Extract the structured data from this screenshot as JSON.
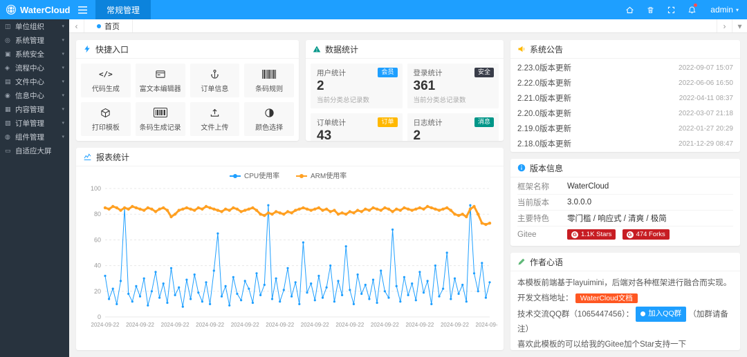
{
  "topbar": {
    "brand": "WaterCloud",
    "active_tab": "常规管理",
    "user": "admin",
    "caret": "▾"
  },
  "tabsbar": {
    "prev": "‹",
    "next": "›",
    "more": "▾",
    "home_tab": "首页"
  },
  "icons": {
    "brand-globe-icon": "globe",
    "menu-icon": "hamburger",
    "home-icon": "house",
    "clear-cache-icon": "trash",
    "fullscreen-icon": "expand",
    "notification-icon": "bell"
  },
  "sidebar": {
    "items": [
      {
        "label": "单位组织",
        "icon": "org-icon",
        "glyph": "◫",
        "caret": "▾"
      },
      {
        "label": "系统管理",
        "icon": "system-settings-icon",
        "glyph": "◎",
        "caret": "▾"
      },
      {
        "label": "系统安全",
        "icon": "security-icon",
        "glyph": "▣",
        "caret": "▾"
      },
      {
        "label": "流程中心",
        "icon": "workflow-icon",
        "glyph": "◈",
        "caret": "▾"
      },
      {
        "label": "文件中心",
        "icon": "file-center-icon",
        "glyph": "▤",
        "caret": "▾"
      },
      {
        "label": "信息中心",
        "icon": "message-center-icon",
        "glyph": "◉",
        "caret": "▾"
      },
      {
        "label": "内容管理",
        "icon": "content-icon",
        "glyph": "▦",
        "caret": "▾"
      },
      {
        "label": "订单管理",
        "icon": "order-icon",
        "glyph": "▧",
        "caret": "▾"
      },
      {
        "label": "组件管理",
        "icon": "component-icon",
        "glyph": "◍",
        "caret": "▾"
      },
      {
        "label": "自适应大屏",
        "icon": "big-screen-icon",
        "glyph": "▭",
        "caret": ""
      }
    ]
  },
  "cards": {
    "quick": {
      "title": "快捷入口",
      "items": [
        {
          "label": "代码生成",
          "icon": "code-icon"
        },
        {
          "label": "富文本编辑器",
          "icon": "richtext-icon"
        },
        {
          "label": "订单信息",
          "icon": "anchor-icon"
        },
        {
          "label": "条码规则",
          "icon": "barcode-icon"
        },
        {
          "label": "打印模板",
          "icon": "cube-icon"
        },
        {
          "label": "条码生成记录",
          "icon": "barcode-record-icon"
        },
        {
          "label": "文件上传",
          "icon": "upload-icon"
        },
        {
          "label": "颜色选择",
          "icon": "color-picker-icon"
        }
      ]
    },
    "stats": {
      "title": "数据统计",
      "items": [
        {
          "label": "用户统计",
          "value": "2",
          "desc": "当前分类总记录数",
          "badge": "会员",
          "badge_color": "#1e9fff"
        },
        {
          "label": "登录统计",
          "value": "361",
          "desc": "当前分类总记录数",
          "badge": "安全",
          "badge_color": "#393d49"
        },
        {
          "label": "订单统计",
          "value": "43",
          "desc": "当前分类总记录数",
          "badge": "订单",
          "badge_color": "#ffb800"
        },
        {
          "label": "日志统计",
          "value": "2",
          "desc": "当前分类总记录数",
          "badge": "消息",
          "badge_color": "#009688"
        }
      ]
    },
    "notice": {
      "title": "系统公告",
      "items": [
        {
          "text": "2.23.0版本更新",
          "date": "2022-09-07 15:07"
        },
        {
          "text": "2.22.0版本更新",
          "date": "2022-06-06 16:50"
        },
        {
          "text": "2.21.0版本更新",
          "date": "2022-04-11 08:37"
        },
        {
          "text": "2.20.0版本更新",
          "date": "2022-03-07 21:18"
        },
        {
          "text": "2.19.0版本更新",
          "date": "2022-01-27 20:29"
        },
        {
          "text": "2.18.0版本更新",
          "date": "2021-12-29 08:47"
        }
      ]
    },
    "chart": {
      "title": "报表统计"
    },
    "version": {
      "title": "版本信息",
      "rows": [
        {
          "label": "框架名称",
          "value": "WaterCloud"
        },
        {
          "label": "当前版本",
          "value": "3.0.0.0"
        },
        {
          "label": "主要特色",
          "value": "零门槛 / 响应式 / 清爽 / 极简"
        }
      ],
      "gitee_label": "Gitee",
      "gitee_badges": [
        {
          "text": "1.1K Stars"
        },
        {
          "text": "474 Forks"
        }
      ]
    },
    "author": {
      "title": "作者心语",
      "line1": "本模板前端基于layuimini，后端对各种框架进行融合而实现。",
      "line2_prefix": "开发文档地址：",
      "line2_badge": "WaterCloud文档",
      "line3_prefix": "技术交流QQ群（1065447456）：",
      "line3_badge": "加入QQ群",
      "line3_suffix": "（加群请备注）",
      "line4": "喜欢此模板的可以给我的Gitee加个Star支持一下"
    }
  },
  "chart_data": {
    "type": "line",
    "title": "报表统计",
    "xlabel": "",
    "ylabel": "",
    "ylim": [
      0,
      100
    ],
    "yticks": [
      0,
      20,
      40,
      60,
      80,
      100
    ],
    "grid": true,
    "legend_position": "top",
    "x_labels": [
      "2024-09-22",
      "2024-09-22",
      "2024-09-22",
      "2024-09-22",
      "2024-09-22",
      "2024-09-22",
      "2024-09-22",
      "2024-09-22",
      "2024-09-22",
      "2024-09-22",
      "2024-09-22",
      "2024-09-22"
    ],
    "series": [
      {
        "name": "CPU使用率",
        "color": "#1e9fff",
        "values": [
          32,
          14,
          22,
          10,
          28,
          85,
          18,
          12,
          24,
          16,
          30,
          9,
          20,
          35,
          15,
          26,
          11,
          38,
          17,
          23,
          8,
          29,
          14,
          33,
          19,
          12,
          27,
          10,
          36,
          65,
          16,
          24,
          9,
          31,
          18,
          13,
          28,
          22,
          11,
          34,
          17,
          25,
          87,
          14,
          30,
          12,
          21,
          38,
          16,
          27,
          10,
          58,
          19,
          26,
          13,
          32,
          15,
          23,
          40,
          12,
          28,
          17,
          55,
          21,
          10,
          33,
          18,
          25,
          14,
          29,
          11,
          36,
          20,
          15,
          68,
          24,
          12,
          31,
          17,
          26,
          13,
          35,
          19,
          28,
          10,
          40,
          16,
          22,
          50,
          14,
          30,
          18,
          25,
          12,
          87,
          34,
          20,
          42,
          15,
          27
        ]
      },
      {
        "name": "ARM使用率",
        "color": "#ffa022",
        "values": [
          85,
          84,
          86,
          85,
          83,
          85,
          84,
          86,
          85,
          84,
          83,
          85,
          84,
          82,
          84,
          85,
          83,
          78,
          80,
          83,
          84,
          85,
          84,
          83,
          85,
          84,
          86,
          85,
          84,
          83,
          82,
          84,
          83,
          85,
          84,
          82,
          83,
          84,
          85,
          83,
          80,
          79,
          81,
          80,
          82,
          81,
          80,
          82,
          81,
          83,
          84,
          85,
          84,
          83,
          84,
          85,
          83,
          84,
          82,
          83,
          80,
          81,
          80,
          82,
          81,
          83,
          82,
          84,
          83,
          85,
          84,
          83,
          85,
          84,
          82,
          84,
          83,
          85,
          84,
          83,
          84,
          85,
          84,
          86,
          85,
          84,
          83,
          84,
          85,
          83,
          80,
          79,
          80,
          78,
          84,
          86,
          80,
          73,
          72,
          73
        ]
      }
    ]
  }
}
